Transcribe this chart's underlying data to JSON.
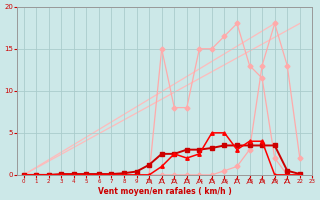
{
  "bg_color": "#cce8e8",
  "grid_color": "#aacccc",
  "xlabel": "Vent moyen/en rafales ( km/h )",
  "xlim": [
    -0.5,
    23
  ],
  "ylim": [
    0,
    20
  ],
  "yticks": [
    0,
    5,
    10,
    15,
    20
  ],
  "xticks": [
    0,
    1,
    2,
    3,
    4,
    5,
    6,
    7,
    8,
    9,
    10,
    11,
    12,
    13,
    14,
    15,
    16,
    17,
    18,
    19,
    20,
    21,
    22,
    23
  ],
  "line_upper": {
    "x": [
      0,
      1,
      2,
      3,
      4,
      5,
      6,
      7,
      8,
      9,
      10,
      11,
      12,
      13,
      14,
      15,
      16,
      17,
      18,
      19,
      20,
      21,
      22
    ],
    "y": [
      0,
      0,
      0,
      0,
      0,
      0,
      0,
      0,
      0,
      0,
      0,
      0,
      0,
      0,
      0,
      0,
      0.5,
      1,
      3,
      13,
      18,
      13,
      2
    ],
    "color": "#ffaaaa",
    "marker": "D",
    "markersize": 2.5,
    "linewidth": 0.9
  },
  "line_mid": {
    "x": [
      0,
      1,
      2,
      3,
      4,
      5,
      6,
      7,
      8,
      9,
      10,
      11,
      12,
      13,
      14,
      15,
      16,
      17,
      18,
      19,
      20,
      21,
      22
    ],
    "y": [
      0,
      0,
      0,
      0,
      0,
      0,
      0,
      0,
      0,
      0,
      0,
      15,
      8,
      8,
      15,
      15,
      16.5,
      18,
      13,
      11.5,
      2,
      0,
      0
    ],
    "color": "#ffaaaa",
    "marker": "D",
    "markersize": 2.5,
    "linewidth": 0.9
  },
  "line_diag1": {
    "x": [
      0,
      22
    ],
    "y": [
      0,
      18
    ],
    "color": "#ffbbbb",
    "marker": "none",
    "linewidth": 0.9
  },
  "line_diag2": {
    "x": [
      0,
      20
    ],
    "y": [
      0,
      18
    ],
    "color": "#ffbbbb",
    "marker": "none",
    "linewidth": 0.9
  },
  "line_freq1": {
    "x": [
      0,
      1,
      2,
      3,
      4,
      5,
      6,
      7,
      8,
      9,
      10,
      11,
      12,
      13,
      14,
      15,
      16,
      17,
      18,
      19,
      20,
      21,
      22
    ],
    "y": [
      0,
      0,
      0,
      0.1,
      0.1,
      0.1,
      0.1,
      0.1,
      0.2,
      0.4,
      1.2,
      2.5,
      2.5,
      3,
      3.0,
      3.2,
      3.5,
      3.5,
      3.5,
      3.5,
      3.5,
      0.5,
      0.1
    ],
    "color": "#cc0000",
    "marker": "s",
    "markersize": 2.5,
    "linewidth": 1.4
  },
  "line_freq2": {
    "x": [
      0,
      1,
      2,
      3,
      4,
      5,
      6,
      7,
      8,
      9,
      10,
      11,
      12,
      13,
      14,
      15,
      16,
      17,
      18,
      19,
      20,
      21,
      22
    ],
    "y": [
      0,
      0,
      0,
      0,
      0,
      0,
      0,
      0,
      0,
      0,
      0,
      1,
      2.5,
      2,
      2.5,
      5,
      5,
      3,
      4,
      4,
      0,
      0,
      0
    ],
    "color": "#ff0000",
    "marker": "^",
    "markersize": 2.5,
    "linewidth": 1.1
  }
}
